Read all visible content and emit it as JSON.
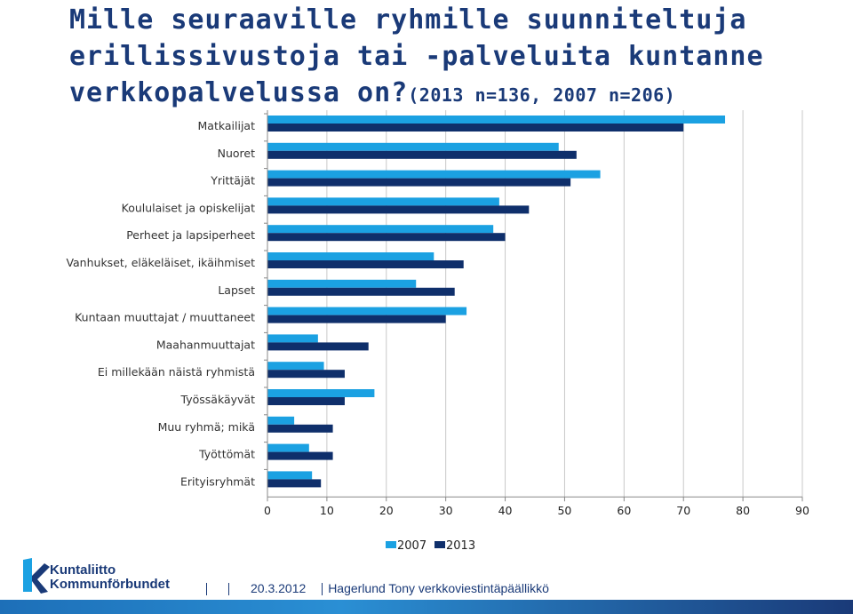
{
  "title": {
    "main": "Mille seuraaville ryhmille suunniteltuja erillissivustoja tai -palveluita kuntanne verkkopalvelussa on?",
    "sub": "(2013 n=136, 2007 n=206)"
  },
  "colors": {
    "s2007": "#1ba1e2",
    "s2013": "#0f2f6b",
    "grid": "#c8c8c8",
    "axis": "#888888"
  },
  "chart_data": {
    "type": "bar",
    "orientation": "horizontal",
    "categories": [
      "Matkailijat",
      "Nuoret",
      "Yrittäjät",
      "Koululaiset ja opiskelijat",
      "Perheet ja lapsiperheet",
      "Vanhukset, eläkeläiset, ikäihmiset",
      "Lapset",
      "Kuntaan muuttajat / muuttaneet",
      "Maahanmuuttajat",
      "Ei millekään näistä ryhmistä",
      "Työssäkäyvät",
      "Muu ryhmä; mikä",
      "Työttömät",
      "Erityisryhmät"
    ],
    "series": [
      {
        "name": "2007",
        "values": [
          77,
          49,
          56,
          39,
          38,
          28,
          25,
          33.5,
          8.5,
          9.5,
          18,
          4.5,
          7,
          7.5
        ]
      },
      {
        "name": "2013",
        "values": [
          70,
          52,
          51,
          44,
          40,
          33,
          31.5,
          30,
          17,
          13,
          13,
          11,
          11,
          9
        ]
      }
    ],
    "xlim": [
      0,
      90
    ],
    "xticks": [
      "0",
      "10",
      "20",
      "30",
      "40",
      "50",
      "60",
      "70",
      "80",
      "90"
    ],
    "grid": true,
    "legend": "bottom-center"
  },
  "logo": {
    "line1": "Kuntaliitto",
    "line2": "Kommunförbundet"
  },
  "footer": {
    "date": "20.3.2012",
    "author": "Hagerlund Tony verkkoviestintäpäällikkö"
  }
}
